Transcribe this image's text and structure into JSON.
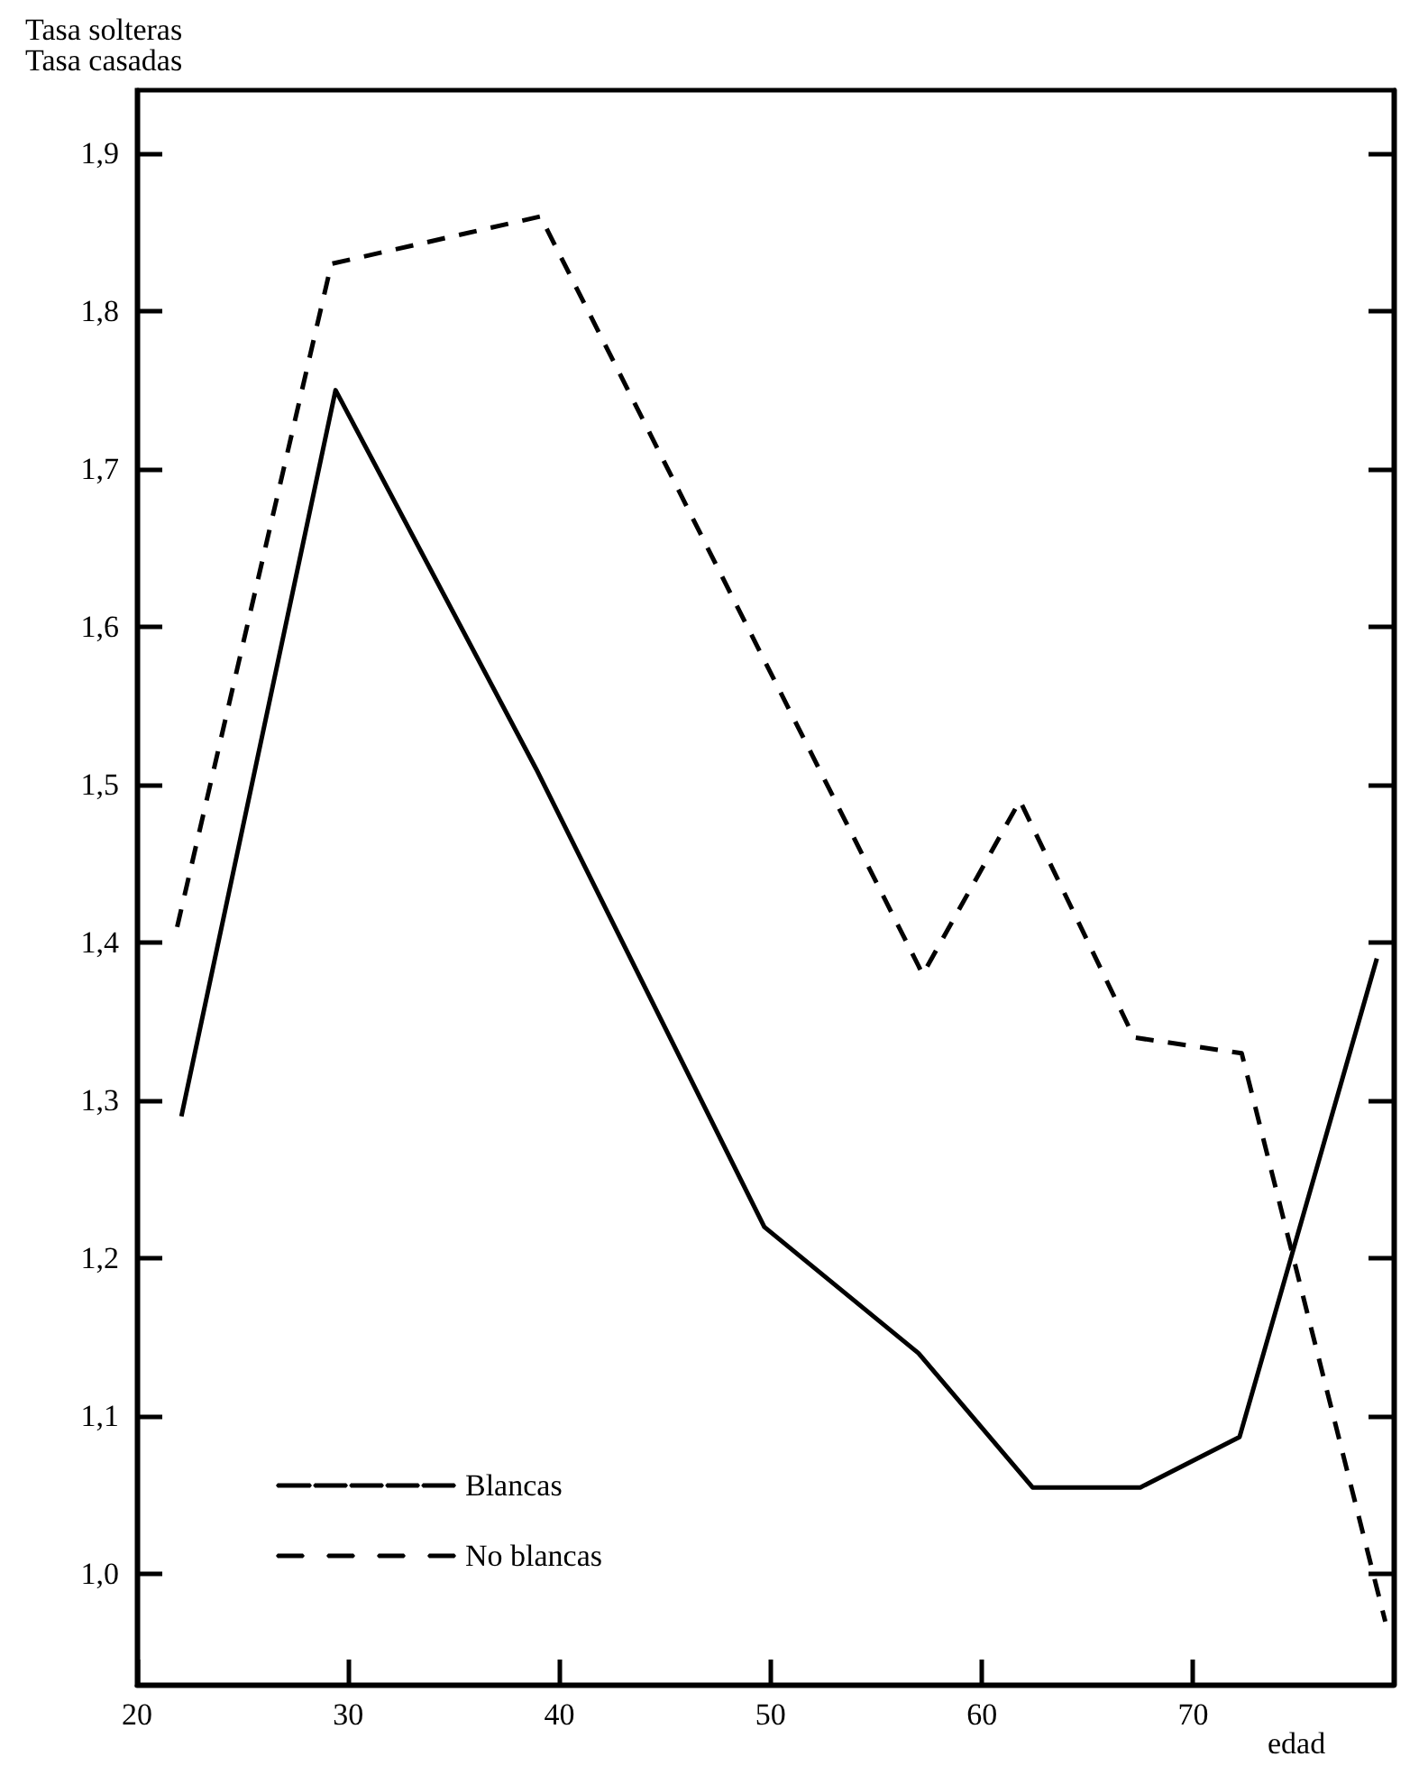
{
  "chart_data": {
    "type": "line",
    "ylabel": "Tasa solteras\nTasa casadas",
    "xlabel": "edad",
    "xlim": [
      20,
      79.5
    ],
    "xticks": [
      20,
      30,
      40,
      50,
      60,
      70
    ],
    "ylim": [
      0.93,
      1.94
    ],
    "yticks": [
      {
        "value": 1.0,
        "label": "1,0"
      },
      {
        "value": 1.1,
        "label": "1,1"
      },
      {
        "value": 1.2,
        "label": "1,2"
      },
      {
        "value": 1.3,
        "label": "1,3"
      },
      {
        "value": 1.4,
        "label": "1,4"
      },
      {
        "value": 1.5,
        "label": "1,5"
      },
      {
        "value": 1.6,
        "label": "1,6"
      },
      {
        "value": 1.7,
        "label": "1,7"
      },
      {
        "value": 1.8,
        "label": "1,8"
      },
      {
        "value": 1.9,
        "label": "1,9"
      }
    ],
    "series": [
      {
        "name": "Blancas",
        "color": "#000000",
        "line_style": "solid",
        "x": [
          22.1,
          29.4,
          38.9,
          49.7,
          57.0,
          62.4,
          67.5,
          72.2,
          78.7
        ],
        "values": [
          1.29,
          1.75,
          1.51,
          1.22,
          1.14,
          1.055,
          1.055,
          1.087,
          1.39
        ]
      },
      {
        "name": "No blancas",
        "color": "#000000",
        "line_style": "dashed",
        "x": [
          21.9,
          29.2,
          39.1,
          57.2,
          61.8,
          67.2,
          72.3,
          79.1
        ],
        "values": [
          1.41,
          1.83,
          1.86,
          1.38,
          1.49,
          1.34,
          1.33,
          0.97
        ]
      }
    ],
    "legend": "bottom left",
    "marker": "none",
    "grid": false
  }
}
